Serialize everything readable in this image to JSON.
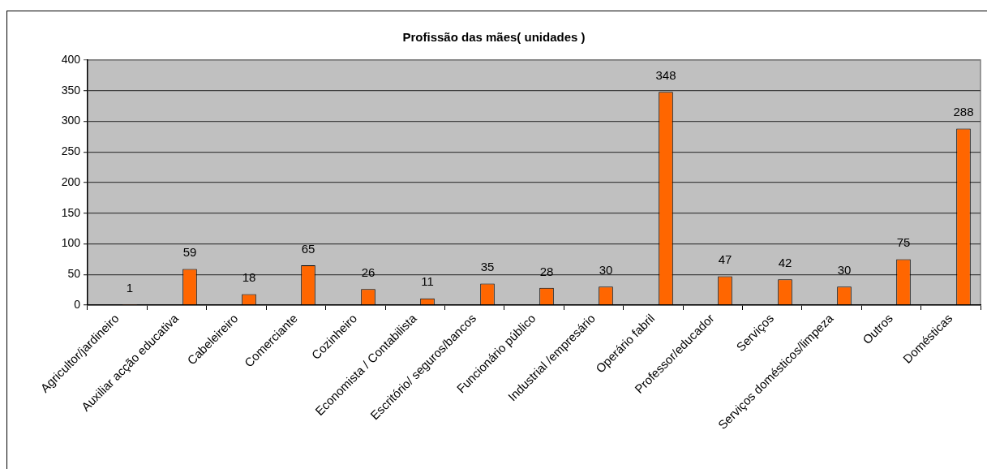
{
  "chart_data": {
    "type": "bar",
    "title": "Profissão das mães( unidades )",
    "categories": [
      "Agricultor/jardineiro",
      "Auxiliar acção educativa",
      "Cabeleireiro",
      "Comerciante",
      "Cozinheiro",
      "Economista / Contabilista",
      "Escritório/ seguros/bancos",
      "Funcionário público",
      "Industrial /empresário",
      "Operário fabril",
      "Professor/educador",
      "Serviços",
      "Serviços domésticos/limpeza",
      "Outros",
      "Domésticas"
    ],
    "values": [
      1,
      59,
      18,
      65,
      26,
      11,
      35,
      28,
      30,
      348,
      47,
      42,
      30,
      75,
      288
    ],
    "color": "#ff6600",
    "ylim": [
      0,
      400
    ],
    "yticks": [
      0,
      50,
      100,
      150,
      200,
      250,
      300,
      350,
      400
    ],
    "grid": "y",
    "data_labels": true
  }
}
